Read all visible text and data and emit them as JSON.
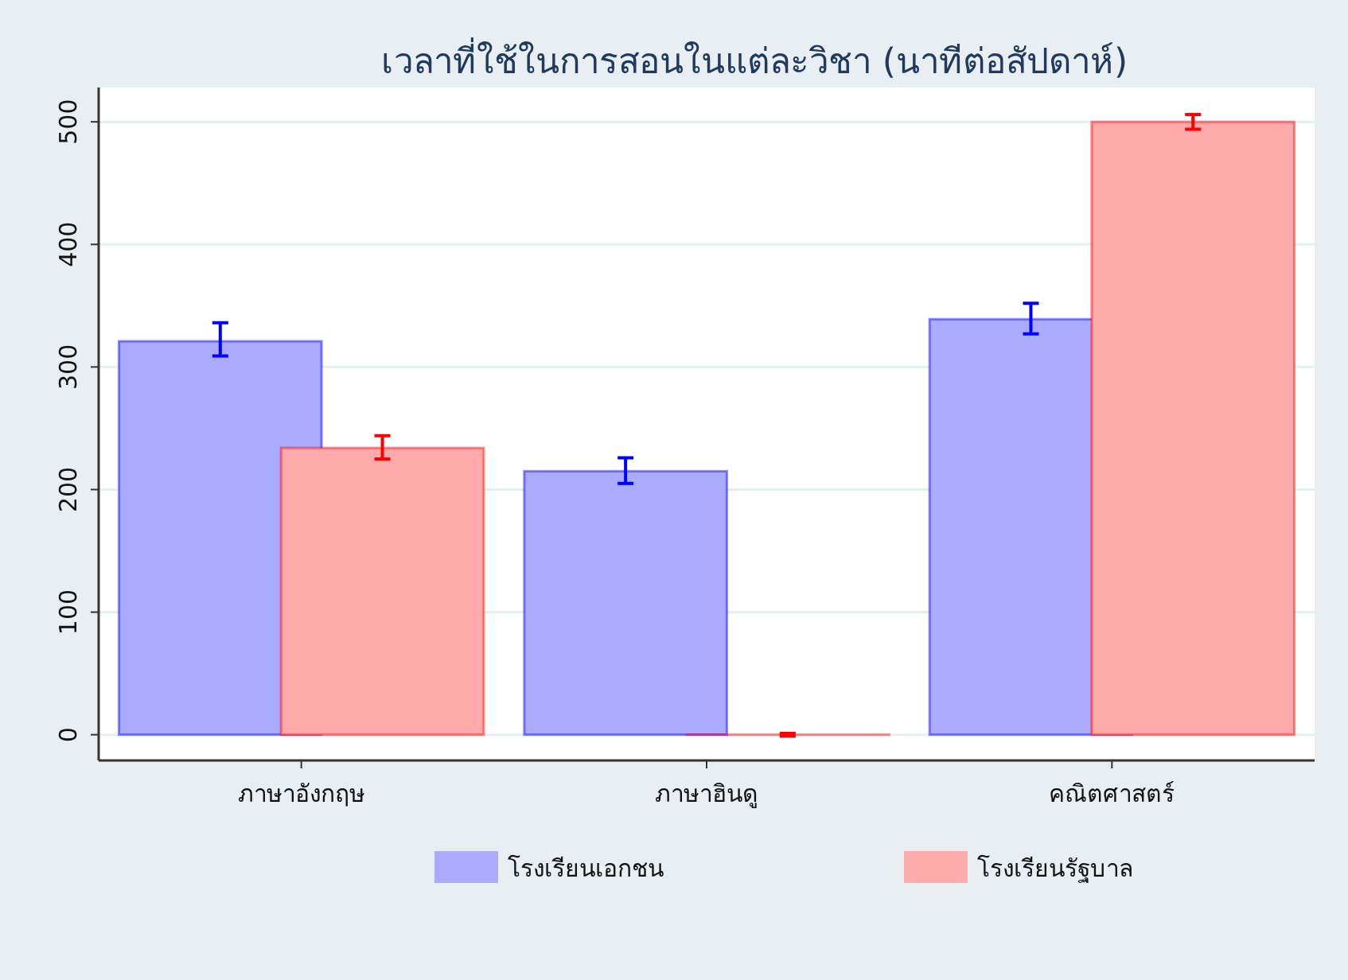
{
  "chart_data": {
    "type": "bar",
    "title": "เวลาที่ใช้ในการสอนในแต่ละวิชา (นาทีต่อสัปดาห์)",
    "categories": [
      "ภาษาอังกฤษ",
      "ภาษาฮินดู",
      "คณิตศาสตร์"
    ],
    "series": [
      {
        "name": "โรงเรียนเอกชน",
        "color": "#aaaaff",
        "values": [
          321,
          215,
          339
        ],
        "errors": [
          [
            309,
            336
          ],
          [
            205,
            226
          ],
          [
            327,
            352
          ]
        ]
      },
      {
        "name": "โรงเรียนรัฐบาล",
        "color": "#ffaaaa",
        "values": [
          234,
          0,
          500
        ],
        "errors": [
          [
            225,
            244
          ],
          [
            -1,
            1
          ],
          [
            494,
            506
          ]
        ]
      }
    ],
    "ylim": [
      -21,
      528
    ],
    "yticks": [
      0,
      100,
      200,
      300,
      400,
      500
    ],
    "grid": "y",
    "legend": "bottom"
  }
}
